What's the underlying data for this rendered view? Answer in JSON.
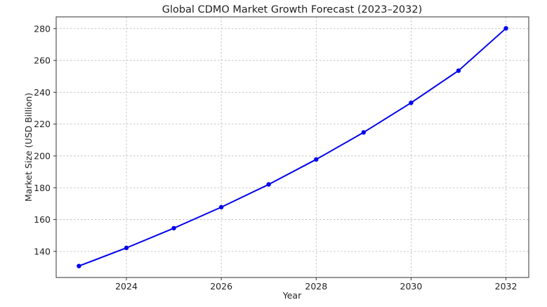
{
  "chart_data": {
    "type": "line",
    "title": "Global CDMO Market Growth Forecast (2023–2032)",
    "xlabel": "Year",
    "ylabel": "Market Size (USD Billion)",
    "x": [
      2023,
      2024,
      2025,
      2026,
      2027,
      2028,
      2029,
      2030,
      2031,
      2032
    ],
    "series": [
      {
        "values": [
          130.8,
          142.2,
          154.6,
          167.8,
          182.1,
          197.8,
          214.8,
          233.4,
          253.6,
          280.2
        ],
        "color": "#0000ee",
        "marker": "circle"
      }
    ],
    "xticks": [
      2024,
      2026,
      2028,
      2030,
      2032
    ],
    "yticks": [
      140,
      160,
      180,
      200,
      220,
      240,
      260,
      280
    ],
    "xlim": [
      2022.52,
      2032.48
    ],
    "ylim": [
      123.6,
      287.4
    ],
    "grid": true,
    "legend": false
  }
}
